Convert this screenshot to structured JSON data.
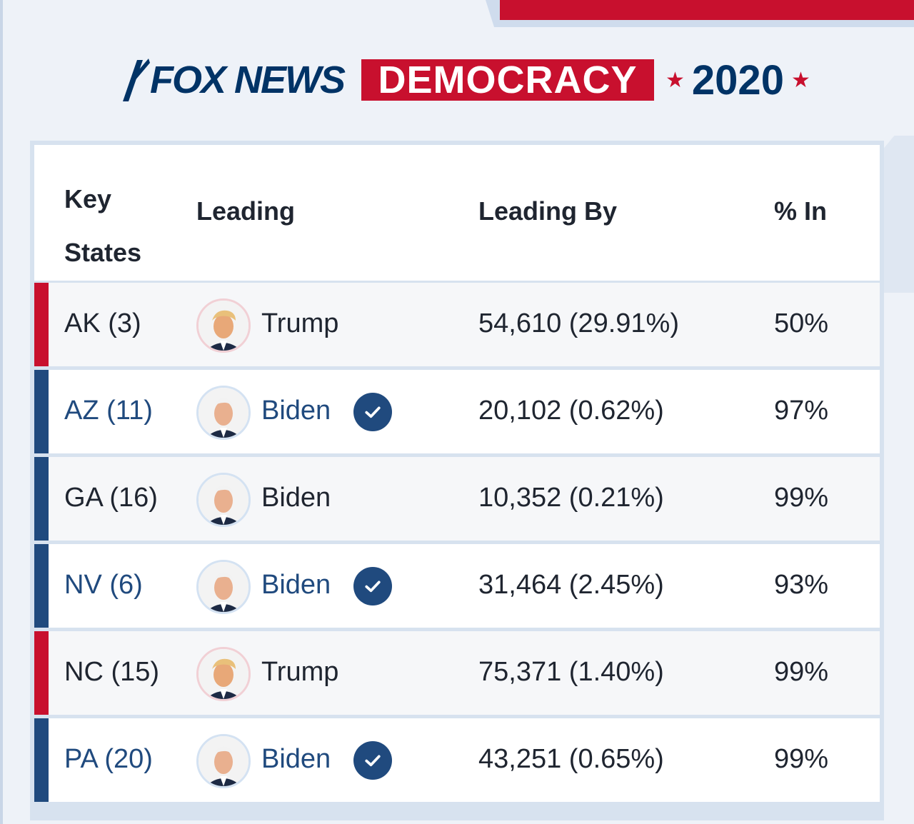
{
  "brand": {
    "fox_news": "FOX NEWS",
    "democracy": "DEMOCRACY",
    "year": "2020",
    "star": "★"
  },
  "colors": {
    "republican": "#c8102e",
    "democrat": "#204a7e",
    "navy": "#003366"
  },
  "table": {
    "headers": {
      "key_states_line1": "Key",
      "key_states_line2": "States",
      "leading": "Leading",
      "leading_by": "Leading By",
      "pct_in": "% In"
    },
    "rows": [
      {
        "state": "AK (3)",
        "candidate": "Trump",
        "party": "republican",
        "called": false,
        "margin": "54,610 (29.91%)",
        "pct_in": "50%"
      },
      {
        "state": "AZ (11)",
        "candidate": "Biden",
        "party": "democrat",
        "called": true,
        "margin": "20,102 (0.62%)",
        "pct_in": "97%"
      },
      {
        "state": "GA (16)",
        "candidate": "Biden",
        "party": "democrat",
        "called": false,
        "margin": "10,352 (0.21%)",
        "pct_in": "99%"
      },
      {
        "state": "NV (6)",
        "candidate": "Biden",
        "party": "democrat",
        "called": true,
        "margin": "31,464 (2.45%)",
        "pct_in": "93%"
      },
      {
        "state": "NC (15)",
        "candidate": "Trump",
        "party": "republican",
        "called": false,
        "margin": "75,371 (1.40%)",
        "pct_in": "99%"
      },
      {
        "state": "PA (20)",
        "candidate": "Biden",
        "party": "democrat",
        "called": true,
        "margin": "43,251 (0.65%)",
        "pct_in": "99%"
      }
    ]
  }
}
